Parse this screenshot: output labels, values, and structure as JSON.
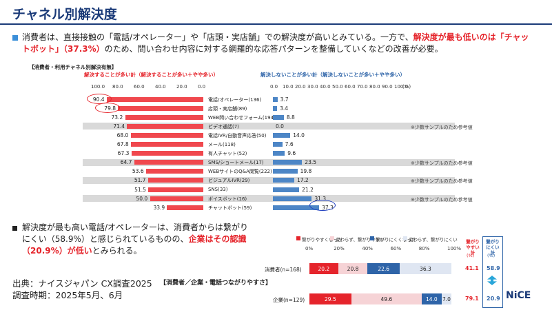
{
  "title": "チャネル別解決度",
  "lead": {
    "part1": "消費者は、直接接触の「電話/オペレーター」や「店頭・実店舗」での解決度が高いとみている。一方で、",
    "highlight": "解決度が最も低いのは「チャットボット」（37.3%）",
    "part2": "のため、問い合わせ内容に対する網羅的な応答パターンを整備していくなどの改善が必要。"
  },
  "chart1": {
    "section_label": "【消費者・利用チャネル別解決有無】",
    "left_header": "解決することが多い計（解決することが多い＋やや多い）",
    "right_header": "解決しないことが多い計（解決しないことが多い＋やや多い）",
    "left_ticks": [
      "100.0",
      "80.0",
      "60.0",
      "40.0",
      "20.0",
      "0.0"
    ],
    "right_ticks": [
      "0.0",
      "10.0",
      "20.0",
      "30.0",
      "40.0",
      "50.0",
      "60.0",
      "70.0",
      "80.0",
      "90.0",
      "100.0"
    ],
    "unit": "(%)",
    "note_text": "※少数サンプルのため参考値"
  },
  "chart_data": [
    {
      "type": "bar",
      "categories": [
        "電話/オペレーター(136)",
        "店頭・実店舗(89)",
        "WEB問い合わせフォーム(194)",
        "ビデオ通話(7)",
        "電話IVR/自動音声応答(50)",
        "メール(118)",
        "有人チャット(52)",
        "SMS/ショートメール(17)",
        "WEBサイトのQ&A閲覧(222)",
        "ビジュアルIVR(29)",
        "SNS(33)",
        "ボイスボット(16)",
        "チャットボット(59)"
      ],
      "series": [
        {
          "name": "解決することが多い計（解決することが多い＋やや多い）",
          "values": [
            90.4,
            79.8,
            73.2,
            71.4,
            68.0,
            67.8,
            67.3,
            64.7,
            53.6,
            51.7,
            51.5,
            50.0,
            33.9
          ]
        },
        {
          "name": "解決しないことが多い計（解決しないことが多い＋やや多い）",
          "values": [
            3.7,
            3.4,
            8.8,
            0.0,
            14.0,
            7.6,
            9.6,
            23.5,
            19.8,
            17.2,
            21.2,
            31.3,
            37.3
          ]
        }
      ],
      "notes": [
        false,
        false,
        false,
        true,
        false,
        false,
        false,
        true,
        false,
        true,
        false,
        true,
        false
      ],
      "xlim": [
        0,
        100
      ]
    },
    {
      "type": "bar",
      "stacked": true,
      "title": "【消費者／企業・電話つながりやすさ】",
      "categories": [
        "消費者(n=168)",
        "企業(n=129)"
      ],
      "series": [
        {
          "name": "繋がりやすくなった",
          "values": [
            20.2,
            29.5
          ],
          "color": "#e5242b"
        },
        {
          "name": "変わらず、繋がりやすい",
          "values": [
            20.8,
            49.6
          ],
          "color": "#f6d3d6"
        },
        {
          "name": "繋がりにくくなった",
          "values": [
            22.6,
            14.0
          ],
          "color": "#2e64a8"
        },
        {
          "name": "変わらず、繋がりにくい",
          "values": [
            36.3,
            7.0
          ],
          "color": "#dfe6f2"
        }
      ],
      "ticks": [
        "0%",
        "20%",
        "40%",
        "60%",
        "80%",
        "100%"
      ],
      "summary": {
        "easy_header": "繋がり やすい計",
        "hard_header": "繋がり にくい計",
        "unit": "(%)",
        "easy": [
          "41.1",
          "79.1"
        ],
        "hard": [
          "58.9",
          "20.9"
        ]
      }
    }
  ],
  "lead2": {
    "part1": "解決度が最も高い電話/オペレーターは、消費者からは繋がりにくい（58.9%）と感じられているものの、",
    "highlight": "企業はその認識（20.9%）が低い",
    "part2": "とみられる。"
  },
  "source": {
    "line1": "出典：ナイスジャパン CX調査2025",
    "line2": "調査時期：2025年5月、6月"
  },
  "logo": "NiCE",
  "colors": {
    "accent": "#1a3a78",
    "red": "#e5242b",
    "blue": "#4d86c6"
  }
}
